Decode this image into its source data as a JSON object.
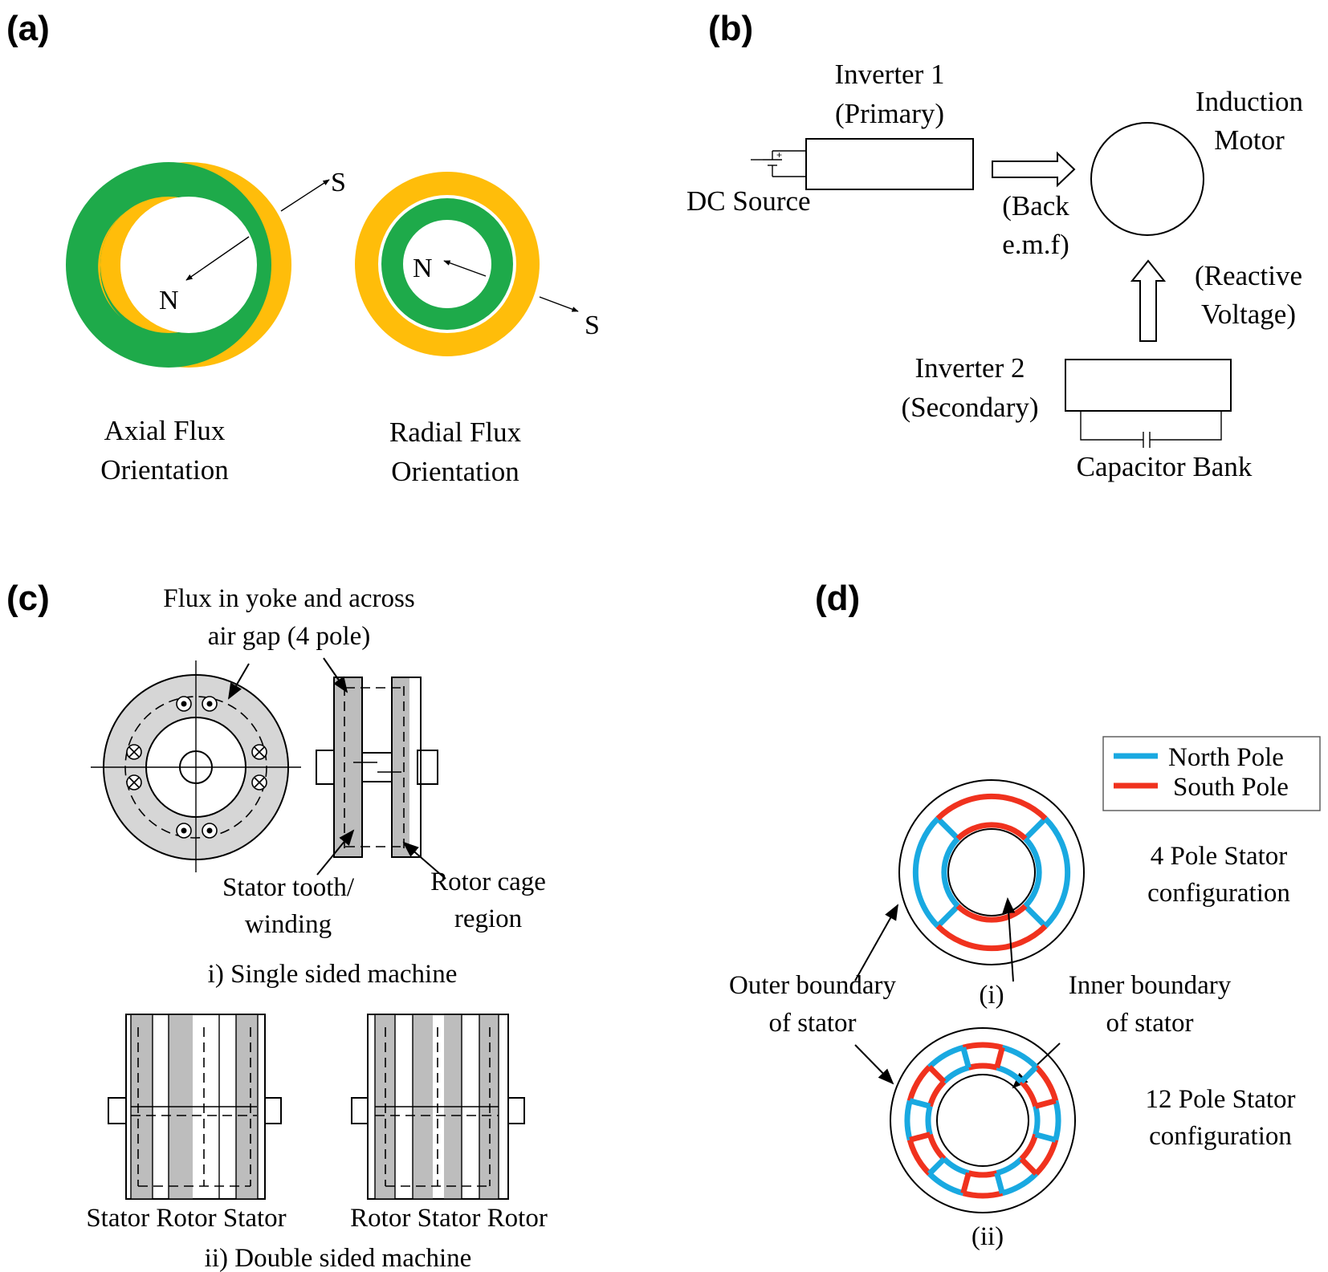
{
  "panels": {
    "a": {
      "label": "(a)",
      "axial_title_1": "Axial Flux",
      "axial_title_2": "Orientation",
      "radial_title_1": "Radial Flux",
      "radial_title_2": "Orientation",
      "pole_n": "N",
      "pole_s": "S",
      "colors": {
        "green": "#1eaa4a",
        "yellow": "#ffbd0a"
      }
    },
    "b": {
      "label": "(b)",
      "inverter1_1": "Inverter 1",
      "inverter1_2": "(Primary)",
      "dc_source": "DC Source",
      "back_emf_1": "(Back",
      "back_emf_2": "e.m.f)",
      "motor_1": "Induction",
      "motor_2": "Motor",
      "reactive_1": "(Reactive",
      "reactive_2": "Voltage)",
      "inverter2_1": "Inverter 2",
      "inverter2_2": "(Secondary)",
      "capacitor": "Capacitor Bank"
    },
    "c": {
      "label": "(c)",
      "flux_1": "Flux in yoke and across",
      "flux_2": "air gap (4 pole)",
      "stator_tooth_1": "Stator tooth/",
      "stator_tooth_2": "winding",
      "rotor_cage_1": "Rotor cage",
      "rotor_cage_2": "region",
      "single_caption": "i) Single sided machine",
      "left_caption": "Stator Rotor Stator",
      "right_caption": "Rotor Stator Rotor",
      "double_caption": "ii) Double sided machine"
    },
    "d": {
      "label": "(d)",
      "legend_north": "North Pole",
      "legend_south": "South Pole",
      "four_pole_1": "4 Pole Stator",
      "four_pole_2": "configuration",
      "outer_1": "Outer boundary",
      "outer_2": "of stator",
      "inner_1": "Inner boundary",
      "inner_2": "of stator",
      "sub_i": "(i)",
      "twelve_pole_1": "12 Pole Stator",
      "twelve_pole_2": "configuration",
      "sub_ii": "(ii)",
      "colors": {
        "north": "#19a9e1",
        "south": "#f0321e"
      }
    }
  }
}
